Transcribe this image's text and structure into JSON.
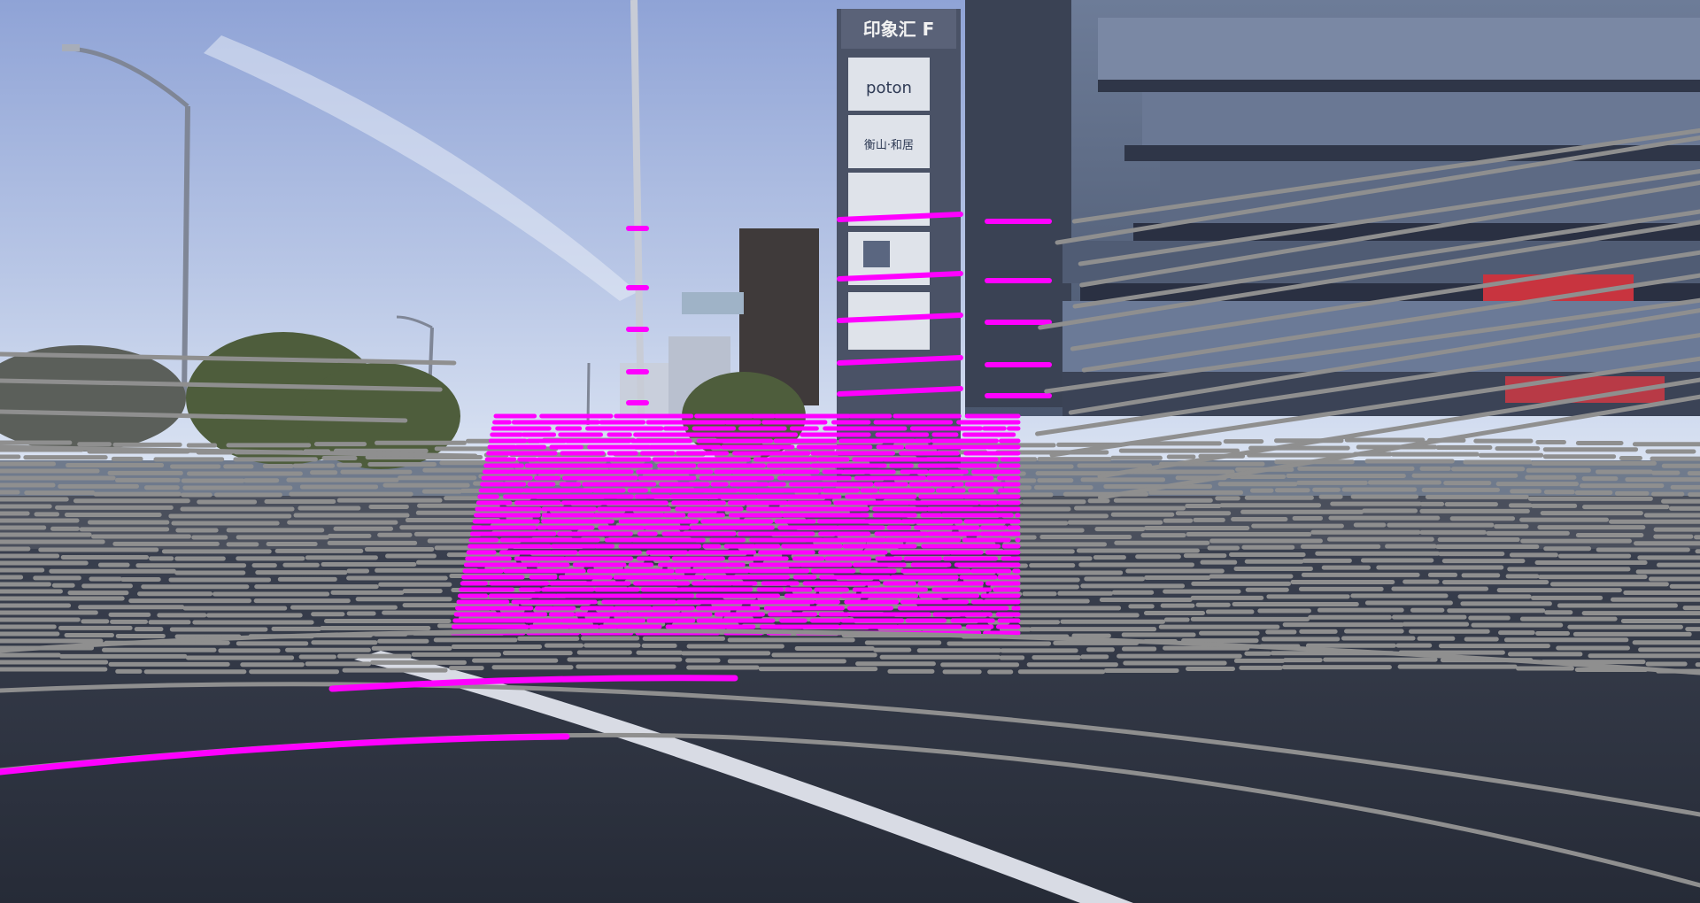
{
  "scene": {
    "type": "street-scene-lidar-projection",
    "colors": {
      "sky_top": "#8fa3d6",
      "sky_bottom": "#d9e2f2",
      "road": "#2b3140",
      "lane_marking": "#d8dbe4",
      "building_dark": "#3d4455",
      "glass": "#5f6f88",
      "tree": "#4b5a3a",
      "lidar_gray": "#8f8f8f",
      "lidar_magenta": "#ff00ff",
      "red_sign": "#c8343f"
    }
  },
  "signs": {
    "tower_top": "印象汇 F",
    "tower_item_1": "poton",
    "tower_item_2": "衡山·和居",
    "tower_item_3": "",
    "tower_item_4": "",
    "tower_item_5": "",
    "mall_sign": "",
    "red_banner": ""
  }
}
